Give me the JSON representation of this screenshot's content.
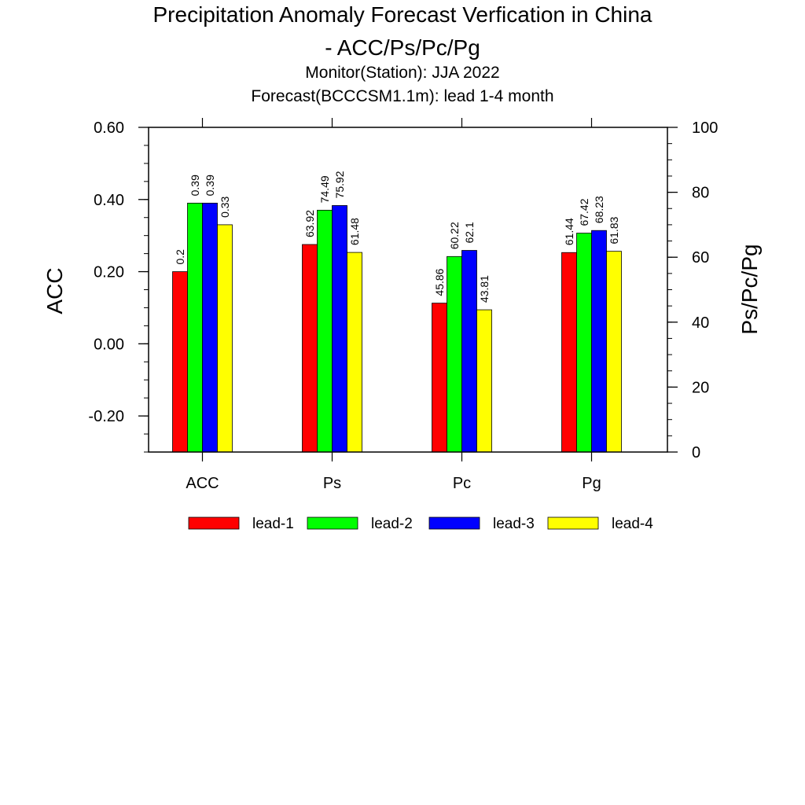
{
  "chart_data": {
    "type": "bar",
    "title_lines": [
      "Precipitation Anomaly Forecast Verfication in China",
      "- ACC/Ps/Pc/Pg"
    ],
    "subtitle_lines": [
      "Monitor(Station): JJA 2022",
      "Forecast(BCCCSM1.1m): lead 1-4 month"
    ],
    "ylabel_left": "ACC",
    "ylabel_right": "Ps/Pc/Pg",
    "ylim_left": [
      -0.3,
      0.6
    ],
    "ylim_right": [
      0,
      100
    ],
    "yticks_left": [
      "0.60",
      "0.40",
      "0.20",
      "0.00",
      "-0.20"
    ],
    "yticks_left_values": [
      0.6,
      0.4,
      0.2,
      0.0,
      -0.2
    ],
    "yticks_right": [
      "100",
      "80",
      "60",
      "40",
      "20",
      "0"
    ],
    "yticks_right_values": [
      100,
      80,
      60,
      40,
      20,
      0
    ],
    "categories": [
      "ACC",
      "Ps",
      "Pc",
      "Pg"
    ],
    "category_axis": [
      "left",
      "right",
      "right",
      "right"
    ],
    "series": [
      {
        "name": "lead-1",
        "color": "#ff0000",
        "values": [
          0.2,
          63.92,
          45.86,
          61.44
        ],
        "labels": [
          "0.2",
          "63.92",
          "45.86",
          "61.44"
        ]
      },
      {
        "name": "lead-2",
        "color": "#00ff00",
        "values": [
          0.39,
          74.49,
          60.22,
          67.42
        ],
        "labels": [
          "0.39",
          "74.49",
          "60.22",
          "67.42"
        ]
      },
      {
        "name": "lead-3",
        "color": "#0000ff",
        "values": [
          0.39,
          75.92,
          62.1,
          68.23
        ],
        "labels": [
          "0.39",
          "75.92",
          "62.1",
          "68.23"
        ]
      },
      {
        "name": "lead-4",
        "color": "#ffff00",
        "values": [
          0.33,
          61.48,
          43.81,
          61.83
        ],
        "labels": [
          "0.33",
          "61.48",
          "43.81",
          "61.83"
        ]
      }
    ],
    "legend_position": "bottom-center",
    "grid": false
  }
}
